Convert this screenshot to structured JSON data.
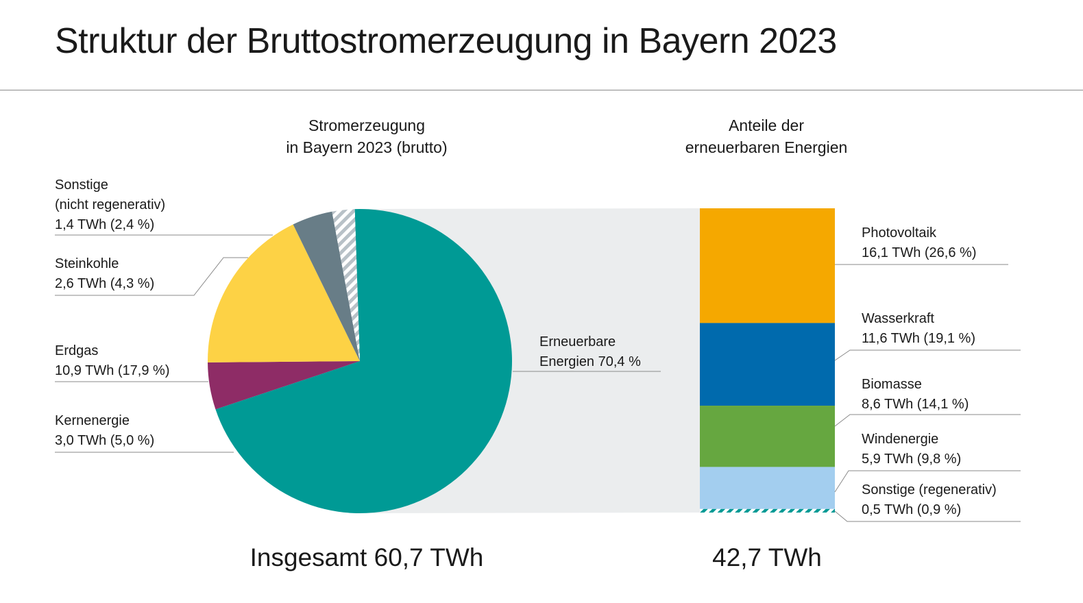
{
  "title": "Struktur der Bruttostromerzeugung in Bayern 2023",
  "chart_data": [
    {
      "type": "pie",
      "title": [
        "Stromerzeugung",
        "in Bayern 2023 (brutto)"
      ],
      "total_label": "Insgesamt 60,7 TWh",
      "unit": "TWh",
      "slices": [
        {
          "key": "sonstige_nr",
          "label_lines": [
            "Sonstige",
            "(nicht regenerativ)",
            "1,4 TWh (2,4 %)"
          ],
          "value": 1.4,
          "percent": 2.4,
          "color": "#b8c1c7",
          "pattern": "hatch"
        },
        {
          "key": "steinkohle",
          "label_lines": [
            "Steinkohle",
            "2,6 TWh (4,3 %)"
          ],
          "value": 2.6,
          "percent": 4.3,
          "color": "#687d87"
        },
        {
          "key": "erdgas",
          "label_lines": [
            "Erdgas",
            "10,9 TWh (17,9 %)"
          ],
          "value": 10.9,
          "percent": 17.9,
          "color": "#fdd245"
        },
        {
          "key": "kernenergie",
          "label_lines": [
            "Kernenergie",
            "3,0 TWh (5,0 %)"
          ],
          "value": 3.0,
          "percent": 5.0,
          "color": "#8e2c66"
        },
        {
          "key": "erneuerbare",
          "label_lines": [
            "Erneuerbare",
            "Energien  70,4 %"
          ],
          "value": 42.7,
          "percent": 70.4,
          "color": "#009a95"
        }
      ]
    },
    {
      "type": "bar",
      "stacked": true,
      "title": [
        "Anteile der",
        "erneuerbaren Energien"
      ],
      "total_label": "42,7 TWh",
      "unit": "TWh",
      "segments": [
        {
          "key": "photovoltaik",
          "label_lines": [
            "Photovoltaik",
            "16,1 TWh (26,6 %)"
          ],
          "value": 16.1,
          "percent": 26.6,
          "color": "#f5a800"
        },
        {
          "key": "wasserkraft",
          "label_lines": [
            "Wasserkraft",
            "11,6 TWh (19,1 %)"
          ],
          "value": 11.6,
          "percent": 19.1,
          "color": "#006aad"
        },
        {
          "key": "biomasse",
          "label_lines": [
            "Biomasse",
            "8,6 TWh (14,1 %)"
          ],
          "value": 8.6,
          "percent": 14.1,
          "color": "#66a740"
        },
        {
          "key": "windenergie",
          "label_lines": [
            "Windenergie",
            "5,9 TWh (9,8 %)"
          ],
          "value": 5.9,
          "percent": 9.8,
          "color": "#a3ceef"
        },
        {
          "key": "sonstige_r",
          "label_lines": [
            "Sonstige (regenerativ)",
            "0,5 TWh (0,9 %)"
          ],
          "value": 0.5,
          "percent": 0.9,
          "color": "#009a95",
          "pattern": "hatch"
        }
      ]
    }
  ]
}
